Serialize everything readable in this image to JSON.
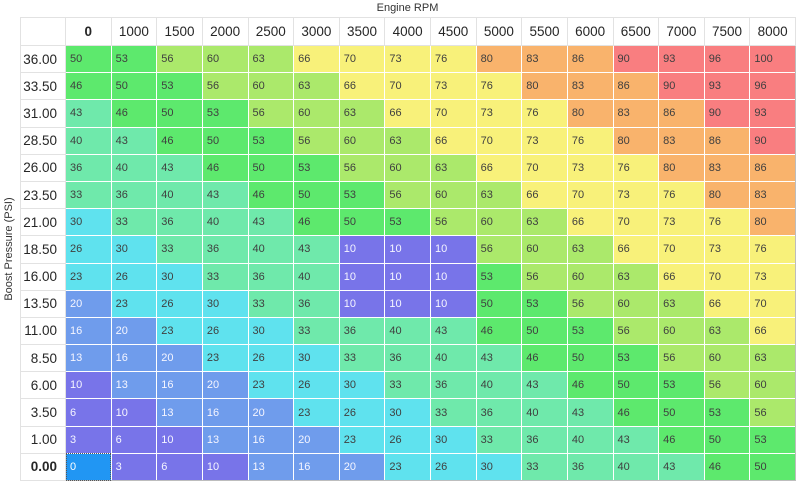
{
  "axes": {
    "x_label": "Engine RPM",
    "y_label": "Boost Pressure (PSI)"
  },
  "table": {
    "column_headers": [
      "0",
      "1000",
      "1500",
      "2000",
      "2500",
      "3000",
      "3500",
      "4000",
      "4500",
      "5000",
      "5500",
      "6000",
      "6500",
      "7000",
      "7500",
      "8000"
    ],
    "row_headers": [
      "36.00",
      "33.50",
      "31.00",
      "28.50",
      "26.00",
      "23.50",
      "21.00",
      "18.50",
      "16.00",
      "13.50",
      "11.00",
      "8.50",
      "6.00",
      "3.50",
      "1.00",
      "0.00"
    ],
    "values": [
      [
        50,
        53,
        56,
        60,
        63,
        66,
        70,
        73,
        76,
        80,
        83,
        86,
        90,
        93,
        96,
        100
      ],
      [
        46,
        50,
        53,
        56,
        60,
        63,
        66,
        70,
        73,
        76,
        80,
        83,
        86,
        90,
        93,
        96
      ],
      [
        43,
        46,
        50,
        53,
        56,
        60,
        63,
        66,
        70,
        73,
        76,
        80,
        83,
        86,
        90,
        93
      ],
      [
        40,
        43,
        46,
        50,
        53,
        56,
        60,
        63,
        66,
        70,
        73,
        76,
        80,
        83,
        86,
        90
      ],
      [
        36,
        40,
        43,
        46,
        50,
        53,
        56,
        60,
        63,
        66,
        70,
        73,
        76,
        80,
        83,
        86
      ],
      [
        33,
        36,
        40,
        43,
        46,
        50,
        53,
        56,
        60,
        63,
        66,
        70,
        73,
        76,
        80,
        83
      ],
      [
        30,
        33,
        36,
        40,
        43,
        46,
        50,
        53,
        56,
        60,
        63,
        66,
        70,
        73,
        76,
        80
      ],
      [
        26,
        30,
        33,
        36,
        40,
        43,
        10,
        10,
        10,
        56,
        60,
        63,
        66,
        70,
        73,
        76
      ],
      [
        23,
        26,
        30,
        33,
        36,
        40,
        10,
        10,
        10,
        53,
        56,
        60,
        63,
        66,
        70,
        73
      ],
      [
        20,
        23,
        26,
        30,
        33,
        36,
        10,
        10,
        10,
        50,
        53,
        56,
        60,
        63,
        66,
        70
      ],
      [
        16,
        20,
        23,
        26,
        30,
        33,
        36,
        40,
        43,
        46,
        50,
        53,
        56,
        60,
        63,
        66
      ],
      [
        13,
        16,
        20,
        23,
        26,
        30,
        33,
        36,
        40,
        43,
        46,
        50,
        53,
        56,
        60,
        63
      ],
      [
        10,
        13,
        16,
        20,
        23,
        26,
        30,
        33,
        36,
        40,
        43,
        46,
        50,
        53,
        56,
        60
      ],
      [
        6,
        10,
        13,
        16,
        20,
        23,
        26,
        30,
        33,
        36,
        40,
        43,
        46,
        50,
        53,
        56
      ],
      [
        3,
        6,
        10,
        13,
        16,
        20,
        23,
        26,
        30,
        33,
        36,
        40,
        43,
        46,
        50,
        53
      ],
      [
        0,
        3,
        6,
        10,
        13,
        16,
        20,
        23,
        26,
        30,
        33,
        36,
        40,
        43,
        46,
        50
      ]
    ],
    "selected_cell": {
      "row_header": "0.00",
      "column_header": "0",
      "row_index": 15,
      "col_index": 0,
      "bg": "#2196f3",
      "fg": "#ffffff"
    }
  },
  "color_scale": [
    {
      "min": 0,
      "max": 0,
      "bg": "#2196f3",
      "fg": "#ffffff"
    },
    {
      "min": 1,
      "max": 12,
      "bg": "#7874e9",
      "fg": "#f5f5ff"
    },
    {
      "min": 13,
      "max": 22,
      "bg": "#6f9cec",
      "fg": "#f5f5ff"
    },
    {
      "min": 23,
      "max": 32,
      "bg": "#5fe2ee",
      "fg": "#3f3f3f"
    },
    {
      "min": 33,
      "max": 45,
      "bg": "#6fe9ab",
      "fg": "#3f3f3f"
    },
    {
      "min": 46,
      "max": 55,
      "bg": "#5de96d",
      "fg": "#3f3f3f"
    },
    {
      "min": 56,
      "max": 65,
      "bg": "#abe96b",
      "fg": "#3f3f3f"
    },
    {
      "min": 66,
      "max": 79,
      "bg": "#f8f17a",
      "fg": "#3f3f3f"
    },
    {
      "min": 80,
      "max": 89,
      "bg": "#f9b36c",
      "fg": "#3f3f3f"
    },
    {
      "min": 90,
      "max": 100,
      "bg": "#f97e80",
      "fg": "#3f3f3f"
    }
  ]
}
